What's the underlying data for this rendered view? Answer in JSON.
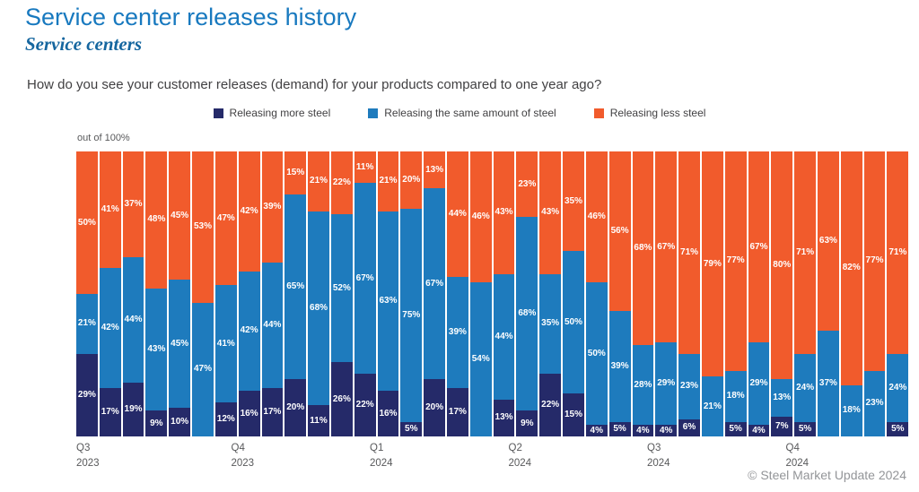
{
  "header": {
    "title": "Service center releases history",
    "subtitle": "Service centers"
  },
  "question": "How do you see your customer releases (demand) for your products compared to one year ago?",
  "axis_note": "out of 100%",
  "footer": "© Steel Market Update 2024",
  "chart_data": {
    "type": "bar",
    "stacked": true,
    "unit": "%",
    "ylim": [
      0,
      100
    ],
    "legend_position": "top",
    "bars_per_quarter": 6,
    "quarter_labels": [
      {
        "quarter": "Q3",
        "year": "2023"
      },
      {
        "quarter": "Q4",
        "year": "2023"
      },
      {
        "quarter": "Q1",
        "year": "2024"
      },
      {
        "quarter": "Q2",
        "year": "2024"
      },
      {
        "quarter": "Q3",
        "year": "2024"
      },
      {
        "quarter": "Q4",
        "year": "2024"
      }
    ],
    "series": [
      {
        "name": "Releasing more steel",
        "key": "more",
        "color": "#252a69",
        "values": [
          29,
          17,
          19,
          9,
          10,
          0,
          12,
          16,
          17,
          20,
          11,
          26,
          22,
          16,
          5,
          20,
          17,
          0,
          13,
          9,
          22,
          15,
          4,
          5,
          4,
          4,
          6,
          0,
          5,
          4,
          7,
          5,
          0,
          0,
          0,
          5
        ]
      },
      {
        "name": "Releasing the same amount of steel",
        "key": "same",
        "color": "#1e7bbd",
        "values": [
          21,
          42,
          44,
          43,
          45,
          47,
          41,
          42,
          44,
          65,
          68,
          52,
          67,
          63,
          75,
          67,
          39,
          54,
          44,
          68,
          35,
          50,
          50,
          39,
          28,
          29,
          23,
          21,
          18,
          29,
          13,
          24,
          37,
          18,
          23,
          24
        ]
      },
      {
        "name": "Releasing less steel",
        "key": "less",
        "color": "#f15b2c",
        "values": [
          50,
          41,
          37,
          48,
          45,
          53,
          47,
          42,
          39,
          15,
          21,
          22,
          11,
          21,
          20,
          13,
          44,
          46,
          43,
          23,
          43,
          35,
          46,
          56,
          68,
          67,
          71,
          79,
          77,
          67,
          80,
          71,
          63,
          82,
          77,
          71
        ]
      }
    ]
  }
}
